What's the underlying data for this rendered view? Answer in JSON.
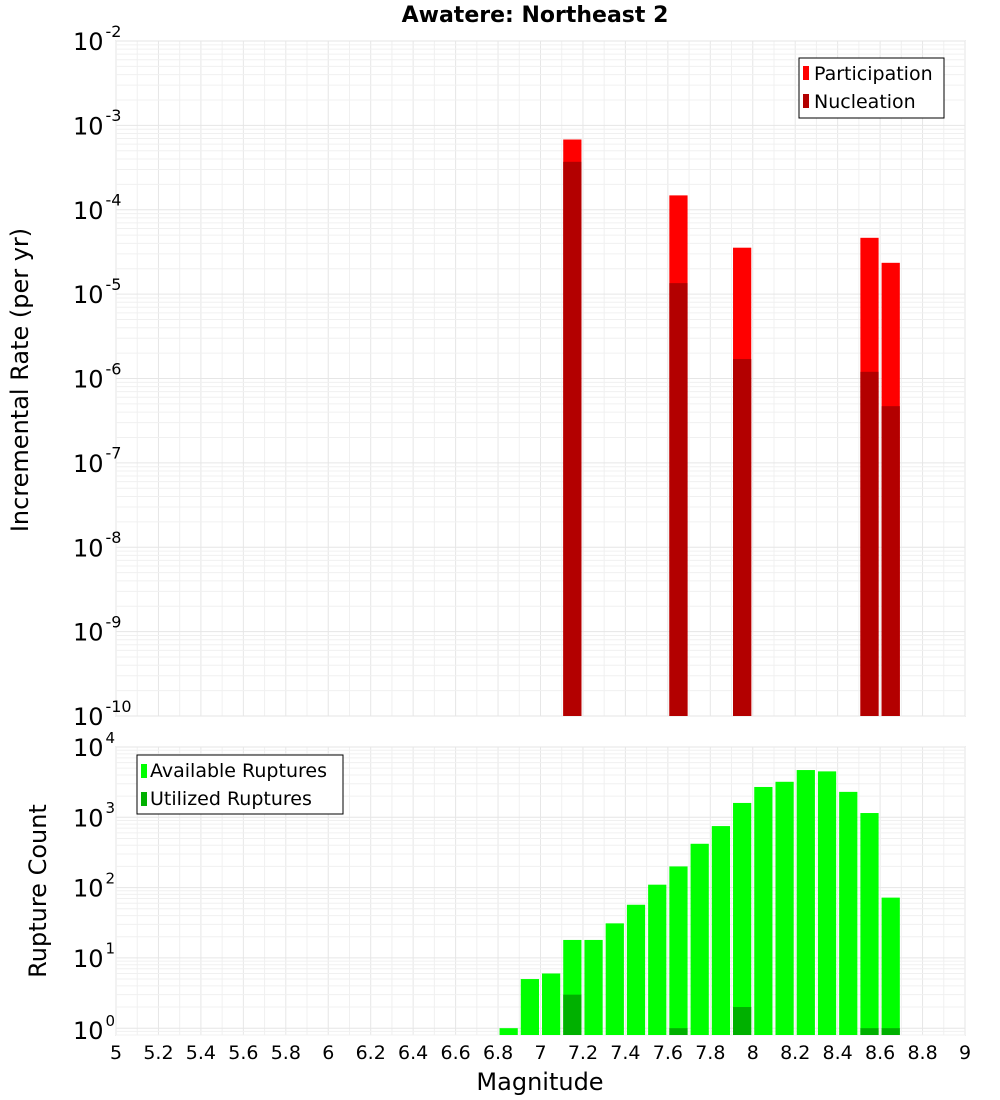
{
  "title": "Awatere: Northeast 2",
  "chart_data": [
    {
      "type": "bar",
      "yscale": "log",
      "ylabel": "Incremental Rate (per yr)",
      "ylim": [
        1e-10,
        0.01
      ],
      "xlim": [
        5,
        9
      ],
      "y_tick_exponents": [
        -10,
        -9,
        -8,
        -7,
        -6,
        -5,
        -4,
        -3,
        -2
      ],
      "grid": true,
      "legend_position": "top-right",
      "bin_width": 0.1,
      "overlay": true,
      "series": [
        {
          "name": "Participation",
          "color": "#ff0000",
          "points": [
            {
              "x": 7.15,
              "y": 0.00068
            },
            {
              "x": 7.65,
              "y": 0.000148
            },
            {
              "x": 7.95,
              "y": 3.55e-05
            },
            {
              "x": 8.55,
              "y": 4.65e-05
            },
            {
              "x": 8.65,
              "y": 2.35e-05
            }
          ]
        },
        {
          "name": "Nucleation",
          "color": "#b30000",
          "points": [
            {
              "x": 7.15,
              "y": 0.00037
            },
            {
              "x": 7.65,
              "y": 1.35e-05
            },
            {
              "x": 7.95,
              "y": 1.7e-06
            },
            {
              "x": 8.55,
              "y": 1.2e-06
            },
            {
              "x": 8.65,
              "y": 4.7e-07
            }
          ]
        }
      ]
    },
    {
      "type": "bar",
      "yscale": "log",
      "xlabel": "Magnitude",
      "ylabel": "Rupture Count",
      "ylim": [
        0.8,
        10000
      ],
      "xlim": [
        5,
        9
      ],
      "x_ticks": [
        "5",
        "5.2",
        "5.4",
        "5.6",
        "5.8",
        "6",
        "6.2",
        "6.4",
        "6.6",
        "6.8",
        "7",
        "7.2",
        "7.4",
        "7.6",
        "7.8",
        "8",
        "8.2",
        "8.4",
        "8.6",
        "8.8",
        "9"
      ],
      "y_tick_exponents": [
        0,
        1,
        2,
        3,
        4
      ],
      "grid": true,
      "legend_position": "top-left",
      "bin_width": 0.1,
      "overlay": true,
      "series": [
        {
          "name": "Available Ruptures",
          "color": "#00ff00",
          "points": [
            {
              "x": 6.85,
              "y": 1
            },
            {
              "x": 6.95,
              "y": 5
            },
            {
              "x": 7.05,
              "y": 6
            },
            {
              "x": 7.15,
              "y": 18
            },
            {
              "x": 7.25,
              "y": 18
            },
            {
              "x": 7.35,
              "y": 31
            },
            {
              "x": 7.45,
              "y": 57
            },
            {
              "x": 7.55,
              "y": 110
            },
            {
              "x": 7.65,
              "y": 200
            },
            {
              "x": 7.75,
              "y": 420
            },
            {
              "x": 7.85,
              "y": 750
            },
            {
              "x": 7.95,
              "y": 1600
            },
            {
              "x": 8.05,
              "y": 2700
            },
            {
              "x": 8.15,
              "y": 3200
            },
            {
              "x": 8.25,
              "y": 4700
            },
            {
              "x": 8.35,
              "y": 4500
            },
            {
              "x": 8.45,
              "y": 2300
            },
            {
              "x": 8.55,
              "y": 1150
            },
            {
              "x": 8.65,
              "y": 72
            }
          ]
        },
        {
          "name": "Utilized Ruptures",
          "color": "#00b000",
          "points": [
            {
              "x": 7.15,
              "y": 3
            },
            {
              "x": 7.65,
              "y": 1
            },
            {
              "x": 7.95,
              "y": 2
            },
            {
              "x": 8.55,
              "y": 1
            },
            {
              "x": 8.65,
              "y": 1
            }
          ]
        }
      ]
    }
  ]
}
